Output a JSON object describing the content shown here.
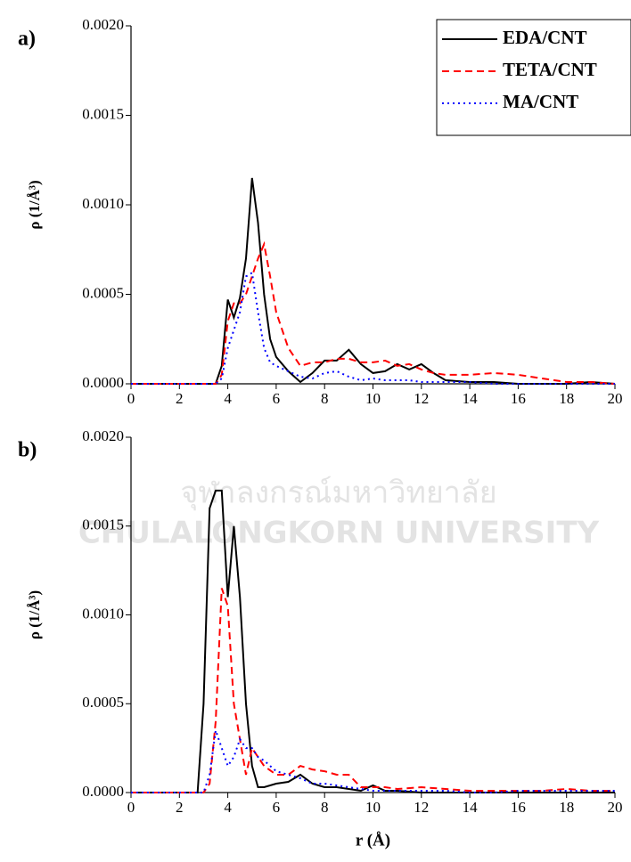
{
  "chart_data": [
    {
      "type": "line",
      "panel_label": "a)",
      "y_label": "ρ (1/Å³)",
      "x": [
        0,
        1,
        2,
        3,
        3.5,
        3.75,
        4,
        4.25,
        4.5,
        4.75,
        5,
        5.25,
        5.5,
        5.75,
        6,
        6.5,
        7,
        7.5,
        8,
        8.5,
        9,
        9.5,
        10,
        10.5,
        11,
        11.5,
        12,
        12.5,
        13,
        14,
        15,
        16,
        17,
        18,
        19,
        20
      ],
      "series": [
        {
          "name": "EDA/CNT",
          "color": "#000000",
          "dash": "solid",
          "values": [
            0,
            0,
            0,
            0,
            0,
            0.0001,
            0.00047,
            0.00037,
            0.00048,
            0.0007,
            0.00115,
            0.0009,
            0.0005,
            0.00025,
            0.00015,
            7e-05,
            1e-05,
            6e-05,
            0.00013,
            0.00013,
            0.00019,
            0.00011,
            6e-05,
            7e-05,
            0.00011,
            8e-05,
            0.00011,
            6e-05,
            2e-05,
            1e-05,
            1e-05,
            0,
            0,
            0,
            1e-05,
            0
          ]
        },
        {
          "name": "TETA/CNT",
          "color": "#ff0000",
          "dash": "dashed",
          "values": [
            0,
            0,
            0,
            0,
            0,
            5e-05,
            0.00035,
            0.00045,
            0.00045,
            0.0005,
            0.0006,
            0.0007,
            0.00078,
            0.0006,
            0.0004,
            0.0002,
            0.0001,
            0.00012,
            0.00012,
            0.00014,
            0.00014,
            0.00012,
            0.00012,
            0.00013,
            0.0001,
            0.00011,
            8e-05,
            6e-05,
            5e-05,
            5e-05,
            6e-05,
            5e-05,
            3e-05,
            1e-05,
            1e-05,
            0
          ]
        },
        {
          "name": "MA/CNT",
          "color": "#0000ff",
          "dash": "dotted",
          "values": [
            0,
            0,
            0,
            0,
            0,
            3e-05,
            0.0002,
            0.0003,
            0.0004,
            0.0006,
            0.00062,
            0.0004,
            0.0002,
            0.00012,
            0.0001,
            7e-05,
            4e-05,
            3e-05,
            6e-05,
            7e-05,
            4e-05,
            2e-05,
            3e-05,
            2e-05,
            2e-05,
            2e-05,
            1e-05,
            1e-05,
            1e-05,
            1e-05,
            0,
            0,
            0,
            0,
            0,
            0
          ]
        }
      ],
      "xlim": [
        0,
        20
      ],
      "xticks": [
        0,
        2,
        4,
        6,
        8,
        10,
        12,
        14,
        16,
        18,
        20
      ],
      "ylim": [
        0,
        0.002
      ],
      "yticks": [
        {
          "value": 0,
          "label": "0.0000"
        },
        {
          "value": 0.0005,
          "label": "0.0005"
        },
        {
          "value": 0.001,
          "label": "0.0010"
        },
        {
          "value": 0.0015,
          "label": "0.0015"
        },
        {
          "value": 0.002,
          "label": "0.0020"
        }
      ],
      "legend": "upper right"
    },
    {
      "type": "line",
      "panel_label": "b)",
      "y_label": "ρ (1/Å³)",
      "x_label": "r (Å)",
      "x": [
        0,
        1,
        2,
        2.75,
        3,
        3.25,
        3.5,
        3.75,
        4,
        4.25,
        4.5,
        4.75,
        5,
        5.25,
        5.5,
        6,
        6.5,
        7,
        7.5,
        8,
        8.5,
        9,
        9.5,
        10,
        10.5,
        11,
        12,
        13,
        14,
        15,
        16,
        17,
        18,
        19,
        20
      ],
      "series": [
        {
          "color": "#000000",
          "dash": "solid",
          "values": [
            0,
            0,
            0,
            0,
            0.0005,
            0.0016,
            0.0017,
            0.0017,
            0.0011,
            0.0015,
            0.0011,
            0.0005,
            0.00015,
            3e-05,
            3e-05,
            5e-05,
            6e-05,
            0.0001,
            5e-05,
            3e-05,
            3e-05,
            2e-05,
            1e-05,
            4e-05,
            1e-05,
            1e-05,
            0,
            0,
            0,
            0,
            0,
            0,
            0,
            0,
            0
          ]
        },
        {
          "color": "#ff0000",
          "dash": "dashed",
          "values": [
            0,
            0,
            0,
            0,
            0,
            5e-05,
            0.0004,
            0.00115,
            0.00105,
            0.0005,
            0.0003,
            0.0001,
            0.00025,
            0.0002,
            0.00015,
            0.0001,
            0.0001,
            0.00015,
            0.00013,
            0.00012,
            0.0001,
            0.0001,
            3e-05,
            3e-05,
            3e-05,
            2e-05,
            3e-05,
            2e-05,
            1e-05,
            1e-05,
            1e-05,
            1e-05,
            2e-05,
            1e-05,
            1e-05
          ]
        },
        {
          "color": "#0000ff",
          "dash": "dotted",
          "values": [
            0,
            0,
            0,
            0,
            0,
            0.0001,
            0.00035,
            0.00025,
            0.00015,
            0.0002,
            0.0003,
            0.00025,
            0.00025,
            0.0002,
            0.00018,
            0.00012,
            0.0001,
            8e-05,
            5e-05,
            5e-05,
            4e-05,
            3e-05,
            2e-05,
            1e-05,
            1e-05,
            1e-05,
            1e-05,
            1e-05,
            0,
            0,
            1e-05,
            1e-05,
            1e-05,
            1e-05,
            1e-05
          ]
        }
      ],
      "xlim": [
        0,
        20
      ],
      "xticks": [
        0,
        2,
        4,
        6,
        8,
        10,
        12,
        14,
        16,
        18,
        20
      ],
      "ylim": [
        0,
        0.002
      ],
      "yticks": [
        {
          "value": 0,
          "label": "0.0000"
        },
        {
          "value": 0.0005,
          "label": "0.0005"
        },
        {
          "value": 0.001,
          "label": "0.0010"
        },
        {
          "value": 0.0015,
          "label": "0.0015"
        },
        {
          "value": 0.002,
          "label": "0.0020"
        }
      ]
    }
  ],
  "watermark": [
    "จุฬาลงกรณ์มหาวิทยาลัย",
    "CHULALONGKORN UNIVERSITY"
  ]
}
